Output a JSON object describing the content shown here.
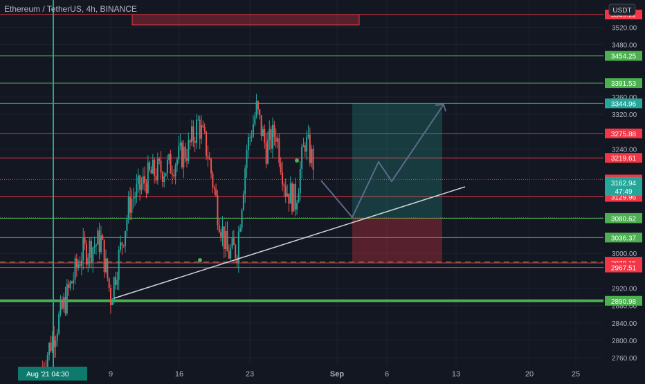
{
  "chart_data": {
    "type": "candlestick",
    "title": "Ethereum / TetherUS, 4h, BINANCE",
    "currency": "USDT",
    "y_ticks": [
      2760,
      2800,
      2840,
      2880,
      2920,
      3000,
      3240,
      3320,
      3360,
      3480,
      3520
    ],
    "x_ticks": [
      "9",
      "16",
      "23",
      "Sep",
      "6",
      "13",
      "20",
      "25"
    ],
    "crosshair_label": "Aug '21   04:30",
    "price_levels": [
      {
        "label": "3549.22",
        "value": 3549.22,
        "color": "#f23645"
      },
      {
        "label": "3454.25",
        "value": 3454.25,
        "color": "#4caf50"
      },
      {
        "label": "3391.53",
        "value": 3391.53,
        "color": "#4caf50"
      },
      {
        "label": "3344.96",
        "value": 3344.96,
        "color": "#26a69a"
      },
      {
        "label": "3275.88",
        "value": 3275.88,
        "color": "#f23645"
      },
      {
        "label": "3219.61",
        "value": 3219.61,
        "color": "#f23645"
      },
      {
        "label": "3169.96",
        "value": 3169.96,
        "color": "#f23645"
      },
      {
        "label": "3129.96",
        "value": 3129.96,
        "color": "#f23645"
      },
      {
        "label": "3081.70",
        "value": 3081.7,
        "color": "#787b86"
      },
      {
        "label": "3080.62",
        "value": 3080.62,
        "color": "#4caf50"
      },
      {
        "label": "3036.37",
        "value": 3036.37,
        "color": "#4caf50"
      },
      {
        "label": "2980.06",
        "value": 2980.06,
        "color": "#4caf50"
      },
      {
        "label": "2978.15",
        "value": 2978.15,
        "color": "#f23645"
      },
      {
        "label": "2967.51",
        "value": 2967.51,
        "color": "#f23645"
      },
      {
        "label": "2890.98",
        "value": 2890.98,
        "color": "#4caf50"
      }
    ],
    "last_price": {
      "value": 3162.94,
      "label": "3162.94",
      "countdown": "47:49",
      "color": "#26a69a"
    },
    "candles_close_path": [
      [
        1,
        2740
      ],
      [
        3,
        2870
      ],
      [
        5,
        3000
      ],
      [
        7,
        3030
      ],
      [
        8,
        2900
      ],
      [
        10,
        3120
      ],
      [
        12,
        3180
      ],
      [
        14,
        3200
      ],
      [
        16,
        3240
      ],
      [
        17,
        3300
      ],
      [
        18,
        3230
      ],
      [
        19,
        3100
      ],
      [
        20,
        3000
      ],
      [
        21,
        3010
      ],
      [
        22,
        3240
      ],
      [
        23,
        3330
      ],
      [
        24,
        3240
      ],
      [
        25,
        3280
      ],
      [
        26,
        3150
      ],
      [
        27,
        3120
      ],
      [
        28,
        3260
      ],
      [
        29,
        3200
      ]
    ],
    "position_tool": {
      "entry": 3081.7,
      "target": 3344.96,
      "stop": 2980.06
    },
    "trendline": {
      "from": [
        8.0,
        2905
      ],
      "to": [
        14.0,
        3155
      ]
    },
    "projection_path": [
      [
        29.3,
        3165
      ],
      [
        31.0,
        3080
      ],
      [
        32.1,
        3225
      ],
      [
        32.6,
        3176
      ],
      [
        34.4,
        3345
      ]
    ]
  }
}
